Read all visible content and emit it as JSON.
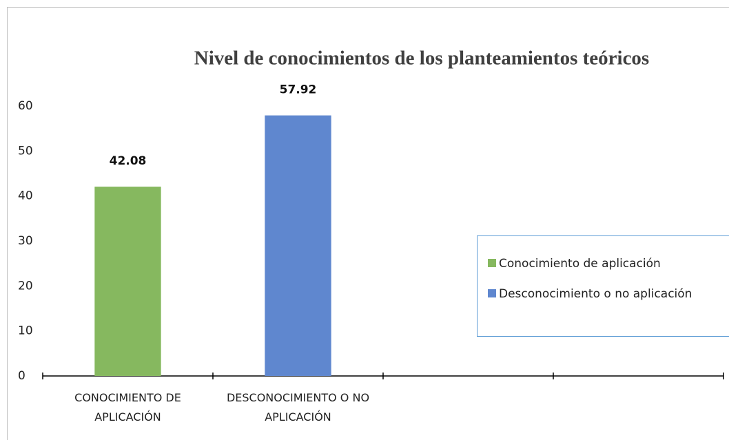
{
  "chart_data": {
    "type": "bar",
    "title": "Nivel de conocimientos de los planteamientos teóricos",
    "categories": [
      "CONOCIMIENTO DE APLICACIÓN",
      "DESCONOCIMIENTO O NO APLICACIÓN",
      null,
      null
    ],
    "series": [
      {
        "name": "Conocimiento de aplicación",
        "color": "#86b85f",
        "values": [
          42.08,
          null,
          null,
          null
        ]
      },
      {
        "name": "Desconocimiento o no aplicación",
        "color": "#5f87cf",
        "values": [
          null,
          57.92,
          null,
          null
        ]
      }
    ],
    "ylim": [
      0,
      60
    ],
    "yticks": [
      0,
      10,
      20,
      30,
      40,
      50,
      60
    ],
    "grid": false,
    "legend": "right"
  }
}
